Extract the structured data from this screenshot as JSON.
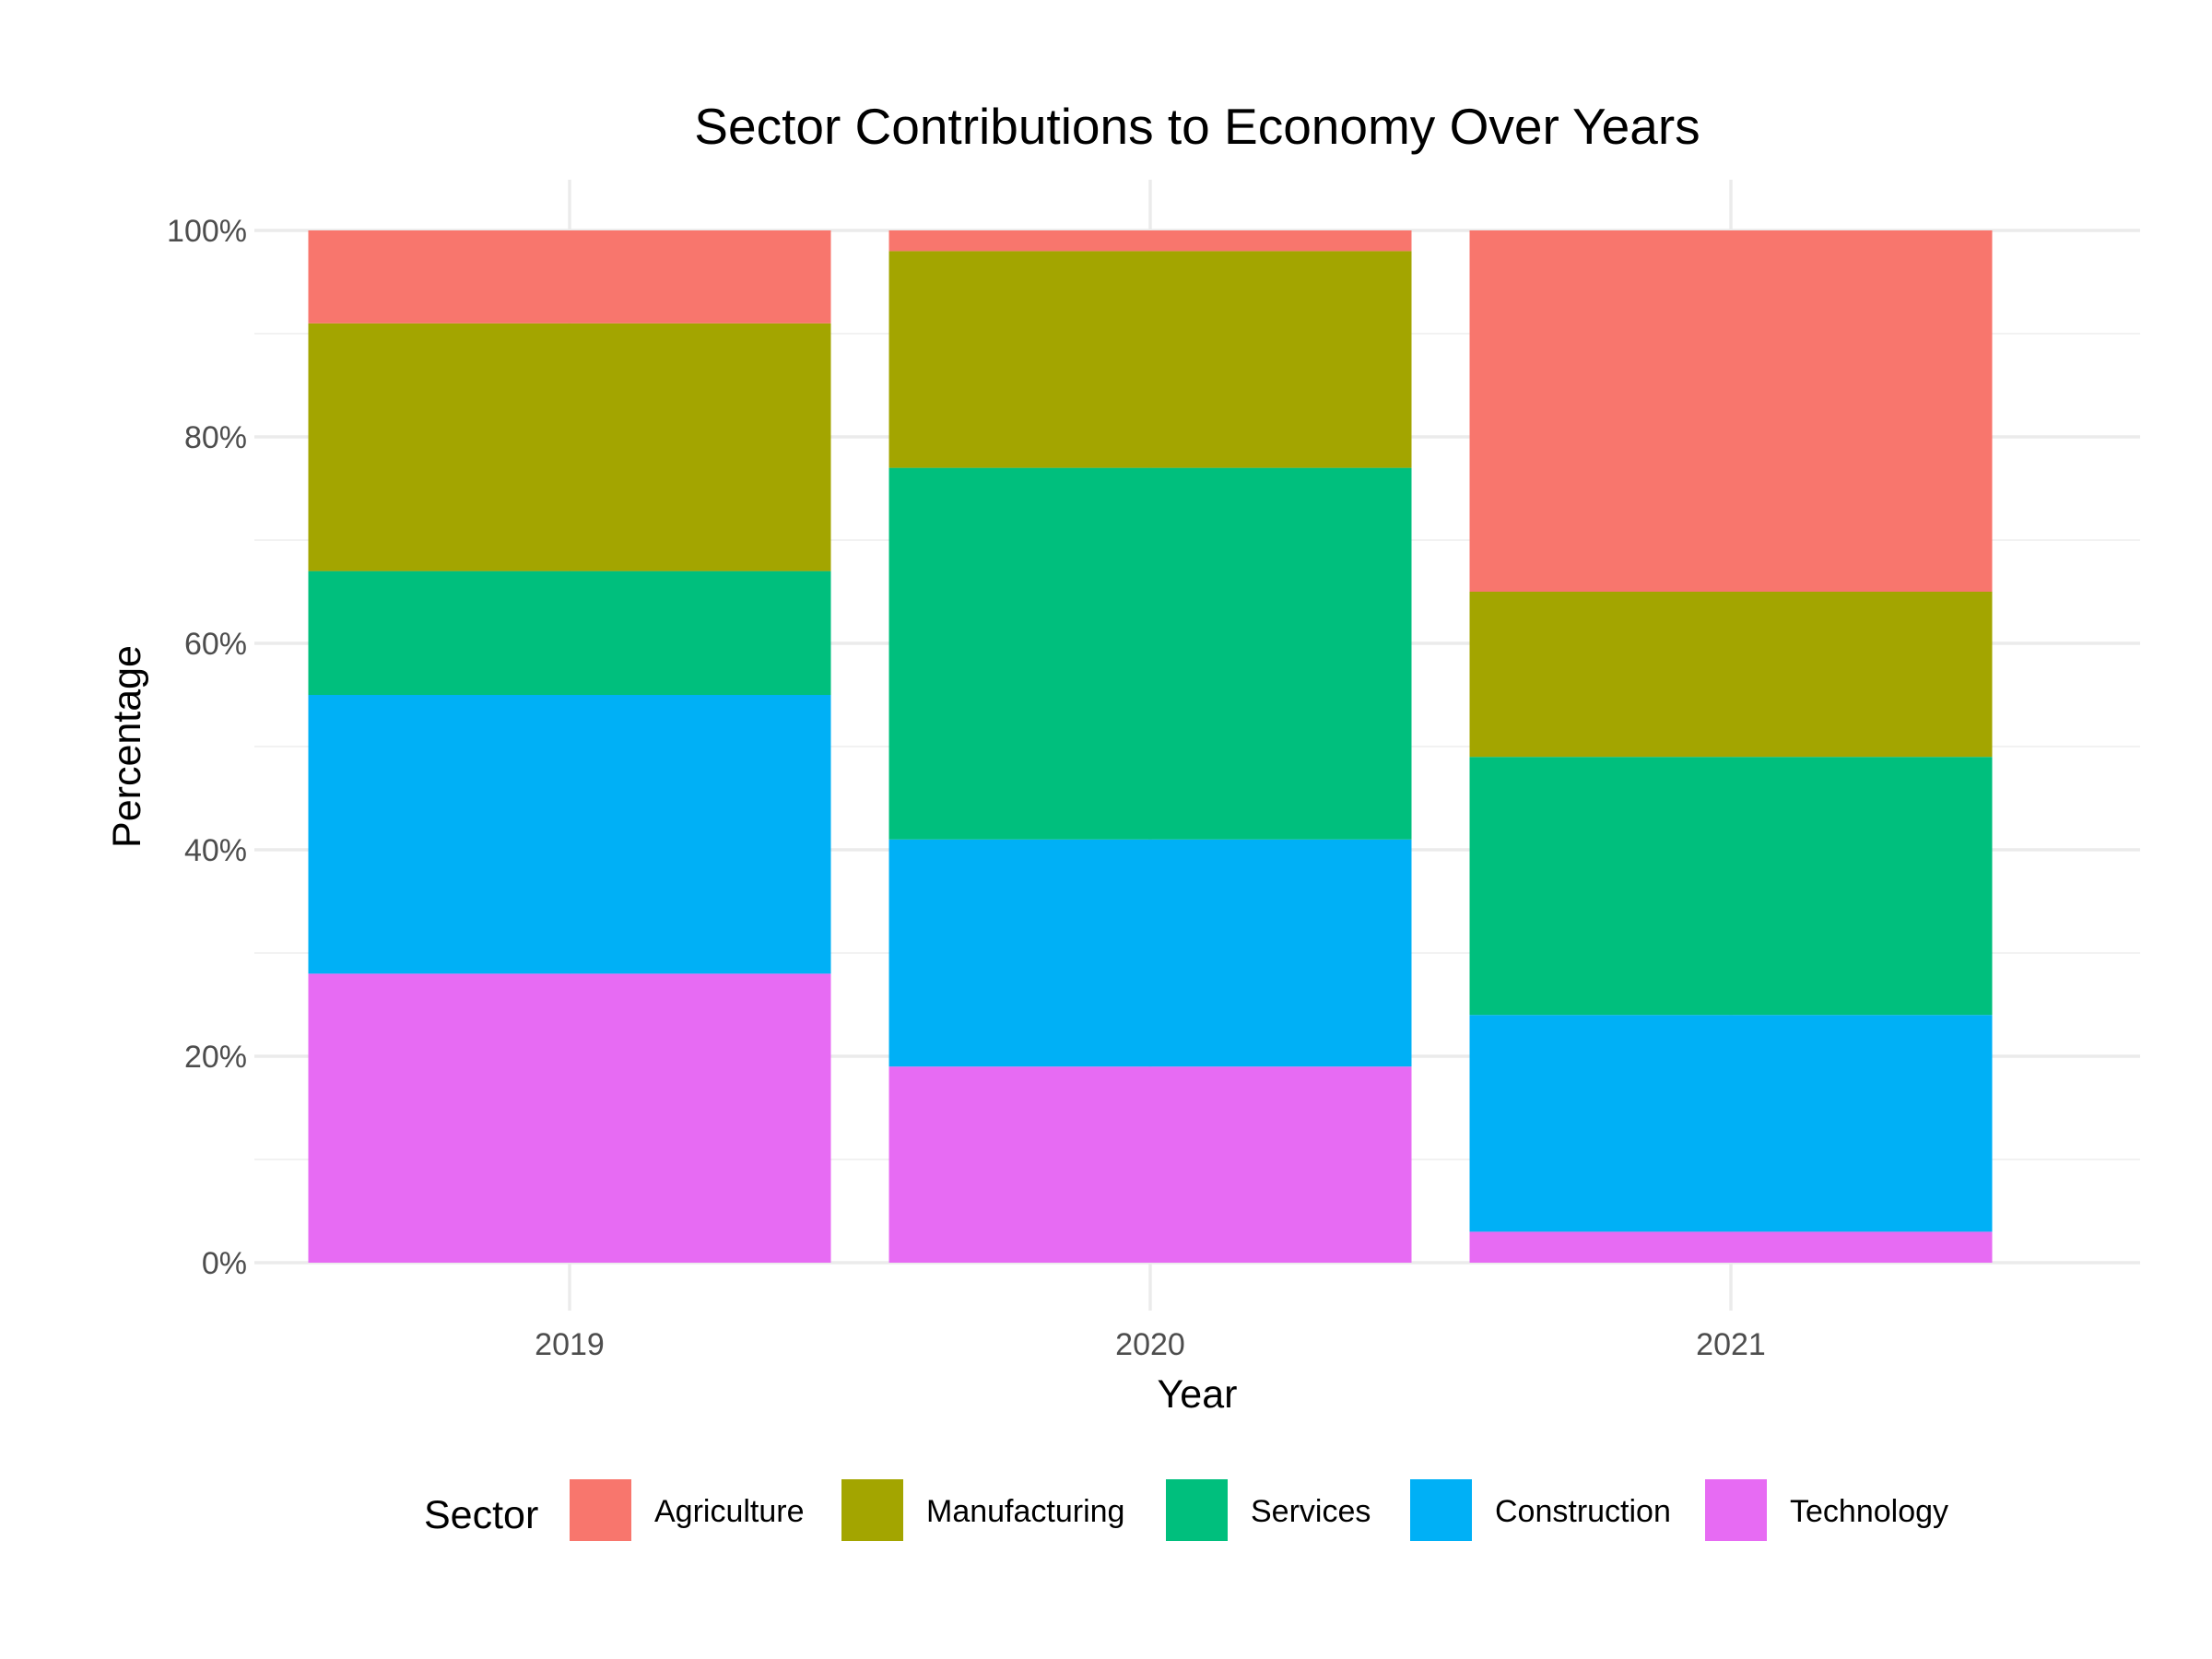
{
  "chart_data": {
    "type": "bar",
    "stacked": true,
    "title": "Sector Contributions to Economy Over Years",
    "xlabel": "Year",
    "ylabel": "Percentage",
    "categories": [
      "2019",
      "2020",
      "2021"
    ],
    "ylim": [
      0,
      100
    ],
    "y_ticks": [
      "0%",
      "20%",
      "40%",
      "60%",
      "80%",
      "100%"
    ],
    "grid": true,
    "legend": {
      "title": "Sector",
      "position": "bottom"
    },
    "series": [
      {
        "name": "Agriculture",
        "color": "#F8766D",
        "values": [
          9,
          2,
          35
        ]
      },
      {
        "name": "Manufacturing",
        "color": "#A3A500",
        "values": [
          24,
          21,
          16
        ]
      },
      {
        "name": "Services",
        "color": "#00BF7D",
        "values": [
          12,
          36,
          25
        ]
      },
      {
        "name": "Construction",
        "color": "#00B0F6",
        "values": [
          27,
          22,
          21
        ]
      },
      {
        "name": "Technology",
        "color": "#E76BF3",
        "values": [
          28,
          19,
          3
        ]
      }
    ]
  }
}
